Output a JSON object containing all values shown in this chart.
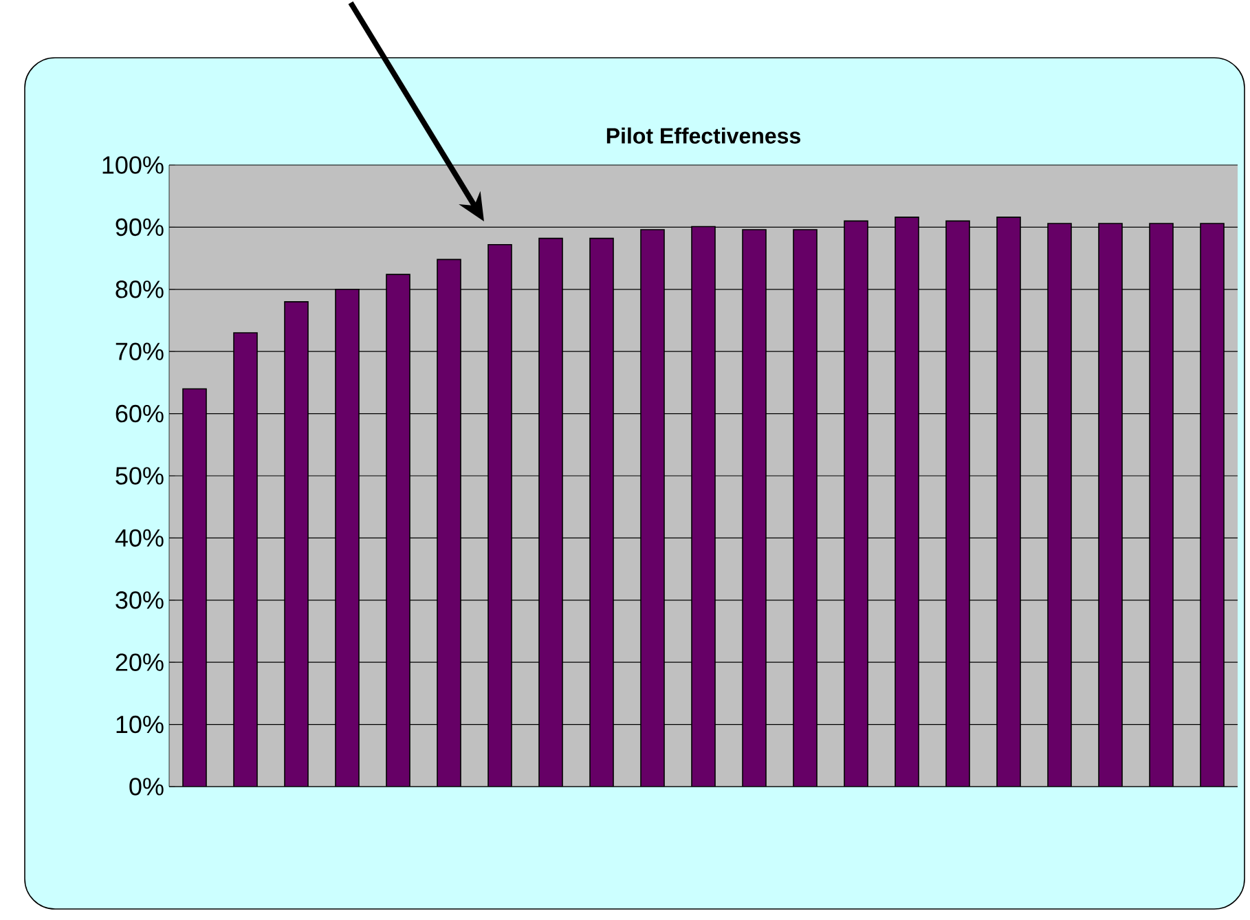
{
  "chart_data": {
    "type": "bar",
    "title": "Pilot Effectiveness",
    "categories": [
      null,
      null,
      null,
      null,
      null,
      null,
      null,
      null,
      null,
      null,
      null,
      null,
      null,
      null,
      null,
      null,
      null,
      null,
      null,
      null,
      null
    ],
    "values": [
      64,
      73,
      78,
      80,
      82.4,
      84.8,
      87.2,
      88.2,
      88.2,
      89.6,
      90.1,
      89.6,
      89.6,
      91,
      91.6,
      91,
      91.6,
      90.6,
      90.6,
      90.6,
      90.6
    ],
    "color": "#660066",
    "ylim": [
      0,
      100
    ],
    "yticks": [
      {
        "value": 0,
        "label": "0%"
      },
      {
        "value": 10,
        "label": "10%"
      },
      {
        "value": 20,
        "label": "20%"
      },
      {
        "value": 30,
        "label": "30%"
      },
      {
        "value": 40,
        "label": "40%"
      },
      {
        "value": 50,
        "label": "50%"
      },
      {
        "value": 60,
        "label": "60%"
      },
      {
        "value": 70,
        "label": "70%"
      },
      {
        "value": 80,
        "label": "80%"
      },
      {
        "value": 90,
        "label": "90%"
      },
      {
        "value": 100,
        "label": "100%"
      }
    ],
    "grid": "y"
  }
}
